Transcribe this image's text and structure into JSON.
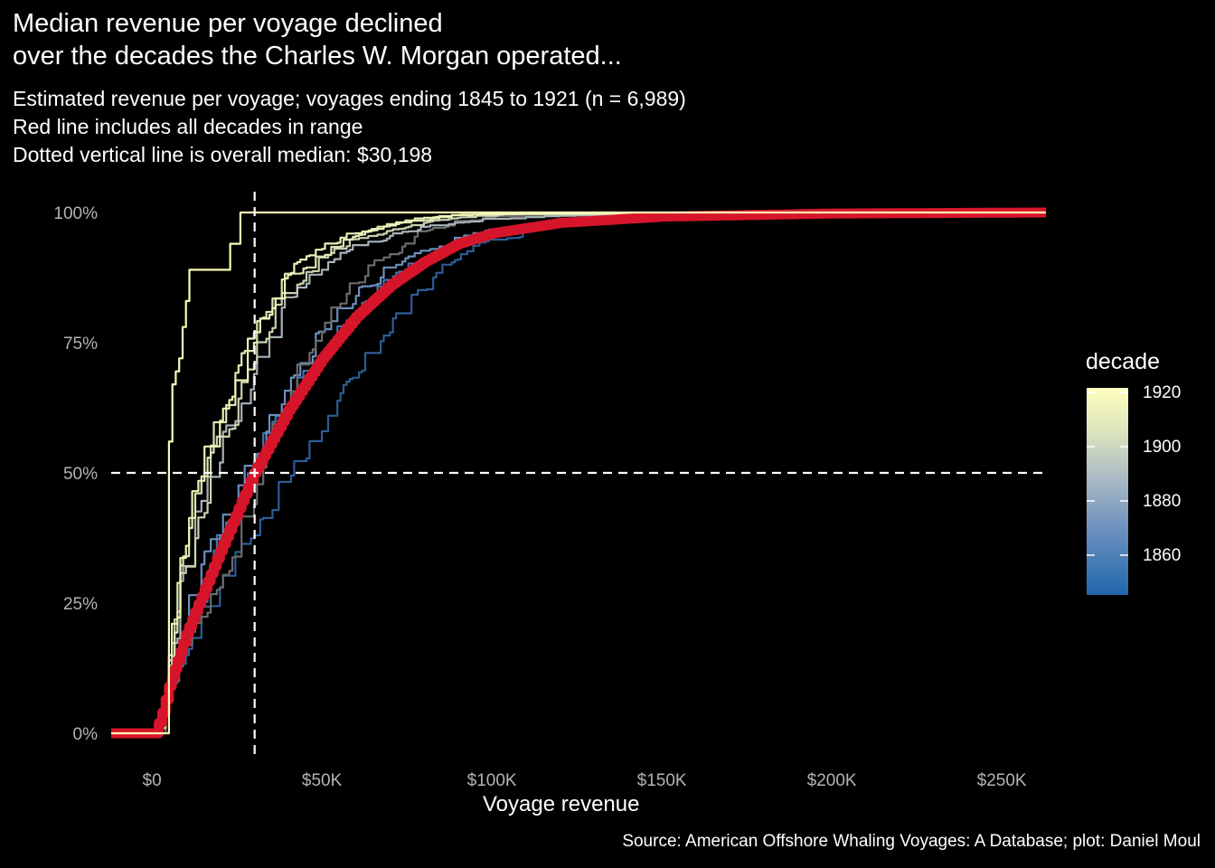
{
  "title_line1": "Median revenue per voyage declined",
  "title_line2": "over the decades the Charles W. Morgan operated...",
  "subtitle_line1": "Estimated revenue per voyage; voyages ending 1845 to 1921 (n = 6,989)",
  "subtitle_line2": "Red line includes all decades in range",
  "subtitle_line3": "Dotted vertical line is overall median: $30,198",
  "caption": "Source: American Offshore Whaling Voyages: A Database; plot: Daniel Moul",
  "colors": {
    "background": "#000000",
    "all_decades": "#d7152a",
    "median_lines": "#ffffff"
  },
  "chart_data": {
    "type": "line",
    "subtype": "step-ecdf",
    "xlabel": "Voyage revenue",
    "ylabel": "",
    "xlim": [
      -12000,
      263000
    ],
    "ylim": [
      0,
      1
    ],
    "x_ticks": [
      0,
      50000,
      100000,
      150000,
      200000,
      250000
    ],
    "x_tick_labels": [
      "$0",
      "$50K",
      "$100K",
      "$150K",
      "$200K",
      "$250K"
    ],
    "y_ticks": [
      0,
      0.25,
      0.5,
      0.75,
      1
    ],
    "y_tick_labels": [
      "0%",
      "25%",
      "50%",
      "75%",
      "100%"
    ],
    "overall_median": 30198,
    "median_reference_y": 0.5,
    "legend": {
      "title": "decade",
      "position": "right",
      "labels": [
        "1920",
        "1900",
        "1880",
        "1860"
      ],
      "range": [
        1845,
        1925
      ]
    },
    "series": [
      {
        "decade": 1840,
        "color": "#2d5d97",
        "points": [
          [
            -12000,
            0
          ],
          [
            2000,
            0
          ],
          [
            4000,
            0.06
          ],
          [
            10000,
            0.15
          ],
          [
            20000,
            0.28
          ],
          [
            30000,
            0.38
          ],
          [
            40000,
            0.48
          ],
          [
            50000,
            0.58
          ],
          [
            60000,
            0.68
          ],
          [
            70000,
            0.77
          ],
          [
            80000,
            0.85
          ],
          [
            90000,
            0.91
          ],
          [
            100000,
            0.945
          ],
          [
            120000,
            0.975
          ],
          [
            150000,
            0.99
          ],
          [
            263000,
            1
          ]
        ]
      },
      {
        "decade": 1850,
        "color": "#4573ad",
        "points": [
          [
            -12000,
            0
          ],
          [
            2000,
            0
          ],
          [
            5000,
            0.09
          ],
          [
            10000,
            0.18
          ],
          [
            20000,
            0.36
          ],
          [
            30000,
            0.51
          ],
          [
            40000,
            0.63
          ],
          [
            50000,
            0.73
          ],
          [
            60000,
            0.81
          ],
          [
            70000,
            0.87
          ],
          [
            80000,
            0.91
          ],
          [
            90000,
            0.935
          ],
          [
            100000,
            0.955
          ],
          [
            125000,
            0.98
          ],
          [
            160000,
            0.993
          ],
          [
            263000,
            1
          ]
        ]
      },
      {
        "decade": 1860,
        "color": "#6b8fbd",
        "points": [
          [
            -12000,
            0
          ],
          [
            2000,
            0
          ],
          [
            5000,
            0.1
          ],
          [
            10000,
            0.2
          ],
          [
            20000,
            0.38
          ],
          [
            30000,
            0.52
          ],
          [
            40000,
            0.65
          ],
          [
            50000,
            0.76
          ],
          [
            60000,
            0.84
          ],
          [
            70000,
            0.89
          ],
          [
            80000,
            0.925
          ],
          [
            90000,
            0.95
          ],
          [
            100000,
            0.965
          ],
          [
            130000,
            0.985
          ],
          [
            180000,
            0.997
          ],
          [
            263000,
            1
          ]
        ]
      },
      {
        "decade": 1870,
        "color": "#6b6b6b",
        "points": [
          [
            -12000,
            0
          ],
          [
            3000,
            0
          ],
          [
            6000,
            0.1
          ],
          [
            10000,
            0.17
          ],
          [
            20000,
            0.28
          ],
          [
            30000,
            0.44
          ],
          [
            40000,
            0.63
          ],
          [
            50000,
            0.77
          ],
          [
            60000,
            0.86
          ],
          [
            70000,
            0.92
          ],
          [
            80000,
            0.96
          ],
          [
            90000,
            0.98
          ],
          [
            100000,
            0.99
          ],
          [
            263000,
            1
          ]
        ]
      },
      {
        "decade": 1880,
        "color": "#a7b3b8",
        "points": [
          [
            -12000,
            0
          ],
          [
            2000,
            0
          ],
          [
            5000,
            0.12
          ],
          [
            10000,
            0.3
          ],
          [
            20000,
            0.52
          ],
          [
            30000,
            0.69
          ],
          [
            40000,
            0.82
          ],
          [
            50000,
            0.89
          ],
          [
            60000,
            0.93
          ],
          [
            70000,
            0.955
          ],
          [
            80000,
            0.97
          ],
          [
            100000,
            0.985
          ],
          [
            130000,
            0.995
          ],
          [
            263000,
            1
          ]
        ]
      },
      {
        "decade": 1890,
        "color": "#c8d3b0",
        "points": [
          [
            -12000,
            0
          ],
          [
            2000,
            0
          ],
          [
            5000,
            0.13
          ],
          [
            10000,
            0.32
          ],
          [
            20000,
            0.55
          ],
          [
            30000,
            0.71
          ],
          [
            40000,
            0.84
          ],
          [
            50000,
            0.91
          ],
          [
            60000,
            0.945
          ],
          [
            70000,
            0.965
          ],
          [
            80000,
            0.98
          ],
          [
            90000,
            0.99
          ],
          [
            110000,
            0.997
          ],
          [
            263000,
            1
          ]
        ]
      },
      {
        "decade": 1900,
        "color": "#dde6b4",
        "points": [
          [
            -12000,
            0
          ],
          [
            2000,
            0
          ],
          [
            5000,
            0.14
          ],
          [
            10000,
            0.34
          ],
          [
            20000,
            0.58
          ],
          [
            30000,
            0.75
          ],
          [
            40000,
            0.86
          ],
          [
            50000,
            0.91
          ],
          [
            60000,
            0.955
          ],
          [
            70000,
            0.975
          ],
          [
            80000,
            0.985
          ],
          [
            90000,
            0.995
          ],
          [
            263000,
            1
          ]
        ]
      },
      {
        "decade": 1910,
        "color": "#eef3b7",
        "points": [
          [
            -12000,
            0
          ],
          [
            2000,
            0
          ],
          [
            5000,
            0.15
          ],
          [
            10000,
            0.36
          ],
          [
            20000,
            0.6
          ],
          [
            30000,
            0.77
          ],
          [
            40000,
            0.88
          ],
          [
            50000,
            0.93
          ],
          [
            60000,
            0.96
          ],
          [
            70000,
            0.975
          ],
          [
            80000,
            0.99
          ],
          [
            100000,
            0.997
          ],
          [
            263000,
            1
          ]
        ]
      },
      {
        "decade": 1920,
        "color": "#fcfdb5",
        "points": [
          [
            -12000,
            0
          ],
          [
            3000,
            0
          ],
          [
            4000,
            0
          ],
          [
            5000,
            0.56
          ],
          [
            6000,
            0.67
          ],
          [
            8000,
            0.72
          ],
          [
            9000,
            0.78
          ],
          [
            10000,
            0.83
          ],
          [
            11000,
            0.89
          ],
          [
            18000,
            0.89
          ],
          [
            23000,
            0.89
          ],
          [
            23000,
            0.94
          ],
          [
            26000,
            0.94
          ],
          [
            26000,
            1
          ],
          [
            263000,
            1
          ]
        ]
      },
      {
        "decade": "all",
        "color": "#d7152a",
        "points": [
          [
            -12000,
            0
          ],
          [
            -1000,
            0
          ],
          [
            1000,
            0
          ],
          [
            3000,
            0.04
          ],
          [
            5000,
            0.09
          ],
          [
            10000,
            0.19
          ],
          [
            20000,
            0.35
          ],
          [
            30000,
            0.5
          ],
          [
            40000,
            0.62
          ],
          [
            50000,
            0.72
          ],
          [
            60000,
            0.8
          ],
          [
            70000,
            0.86
          ],
          [
            80000,
            0.905
          ],
          [
            90000,
            0.94
          ],
          [
            100000,
            0.96
          ],
          [
            120000,
            0.98
          ],
          [
            150000,
            0.992
          ],
          [
            200000,
            0.998
          ],
          [
            263000,
            1
          ]
        ]
      }
    ]
  }
}
